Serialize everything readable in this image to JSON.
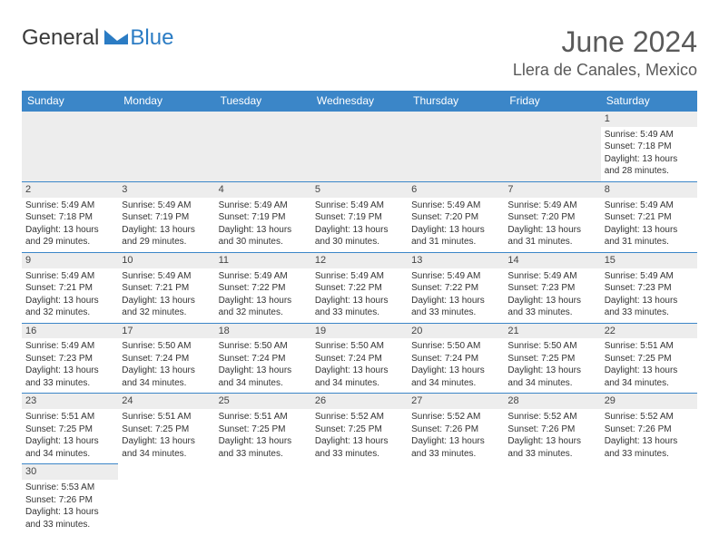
{
  "brand": {
    "part1": "General",
    "part2": "Blue"
  },
  "month_title": "June 2024",
  "location": "Llera de Canales, Mexico",
  "day_headers": [
    "Sunday",
    "Monday",
    "Tuesday",
    "Wednesday",
    "Thursday",
    "Friday",
    "Saturday"
  ],
  "colors": {
    "header_bg": "#3b86c8",
    "header_text": "#ffffff",
    "cell_border": "#3b86c8",
    "daynum_bg": "#ededed",
    "text": "#333333",
    "logo_blue": "#2b7cc4"
  },
  "weeks": [
    [
      null,
      null,
      null,
      null,
      null,
      null,
      {
        "n": "1",
        "sr": "Sunrise: 5:49 AM",
        "ss": "Sunset: 7:18 PM",
        "d1": "Daylight: 13 hours",
        "d2": "and 28 minutes."
      }
    ],
    [
      {
        "n": "2",
        "sr": "Sunrise: 5:49 AM",
        "ss": "Sunset: 7:18 PM",
        "d1": "Daylight: 13 hours",
        "d2": "and 29 minutes."
      },
      {
        "n": "3",
        "sr": "Sunrise: 5:49 AM",
        "ss": "Sunset: 7:19 PM",
        "d1": "Daylight: 13 hours",
        "d2": "and 29 minutes."
      },
      {
        "n": "4",
        "sr": "Sunrise: 5:49 AM",
        "ss": "Sunset: 7:19 PM",
        "d1": "Daylight: 13 hours",
        "d2": "and 30 minutes."
      },
      {
        "n": "5",
        "sr": "Sunrise: 5:49 AM",
        "ss": "Sunset: 7:19 PM",
        "d1": "Daylight: 13 hours",
        "d2": "and 30 minutes."
      },
      {
        "n": "6",
        "sr": "Sunrise: 5:49 AM",
        "ss": "Sunset: 7:20 PM",
        "d1": "Daylight: 13 hours",
        "d2": "and 31 minutes."
      },
      {
        "n": "7",
        "sr": "Sunrise: 5:49 AM",
        "ss": "Sunset: 7:20 PM",
        "d1": "Daylight: 13 hours",
        "d2": "and 31 minutes."
      },
      {
        "n": "8",
        "sr": "Sunrise: 5:49 AM",
        "ss": "Sunset: 7:21 PM",
        "d1": "Daylight: 13 hours",
        "d2": "and 31 minutes."
      }
    ],
    [
      {
        "n": "9",
        "sr": "Sunrise: 5:49 AM",
        "ss": "Sunset: 7:21 PM",
        "d1": "Daylight: 13 hours",
        "d2": "and 32 minutes."
      },
      {
        "n": "10",
        "sr": "Sunrise: 5:49 AM",
        "ss": "Sunset: 7:21 PM",
        "d1": "Daylight: 13 hours",
        "d2": "and 32 minutes."
      },
      {
        "n": "11",
        "sr": "Sunrise: 5:49 AM",
        "ss": "Sunset: 7:22 PM",
        "d1": "Daylight: 13 hours",
        "d2": "and 32 minutes."
      },
      {
        "n": "12",
        "sr": "Sunrise: 5:49 AM",
        "ss": "Sunset: 7:22 PM",
        "d1": "Daylight: 13 hours",
        "d2": "and 33 minutes."
      },
      {
        "n": "13",
        "sr": "Sunrise: 5:49 AM",
        "ss": "Sunset: 7:22 PM",
        "d1": "Daylight: 13 hours",
        "d2": "and 33 minutes."
      },
      {
        "n": "14",
        "sr": "Sunrise: 5:49 AM",
        "ss": "Sunset: 7:23 PM",
        "d1": "Daylight: 13 hours",
        "d2": "and 33 minutes."
      },
      {
        "n": "15",
        "sr": "Sunrise: 5:49 AM",
        "ss": "Sunset: 7:23 PM",
        "d1": "Daylight: 13 hours",
        "d2": "and 33 minutes."
      }
    ],
    [
      {
        "n": "16",
        "sr": "Sunrise: 5:49 AM",
        "ss": "Sunset: 7:23 PM",
        "d1": "Daylight: 13 hours",
        "d2": "and 33 minutes."
      },
      {
        "n": "17",
        "sr": "Sunrise: 5:50 AM",
        "ss": "Sunset: 7:24 PM",
        "d1": "Daylight: 13 hours",
        "d2": "and 34 minutes."
      },
      {
        "n": "18",
        "sr": "Sunrise: 5:50 AM",
        "ss": "Sunset: 7:24 PM",
        "d1": "Daylight: 13 hours",
        "d2": "and 34 minutes."
      },
      {
        "n": "19",
        "sr": "Sunrise: 5:50 AM",
        "ss": "Sunset: 7:24 PM",
        "d1": "Daylight: 13 hours",
        "d2": "and 34 minutes."
      },
      {
        "n": "20",
        "sr": "Sunrise: 5:50 AM",
        "ss": "Sunset: 7:24 PM",
        "d1": "Daylight: 13 hours",
        "d2": "and 34 minutes."
      },
      {
        "n": "21",
        "sr": "Sunrise: 5:50 AM",
        "ss": "Sunset: 7:25 PM",
        "d1": "Daylight: 13 hours",
        "d2": "and 34 minutes."
      },
      {
        "n": "22",
        "sr": "Sunrise: 5:51 AM",
        "ss": "Sunset: 7:25 PM",
        "d1": "Daylight: 13 hours",
        "d2": "and 34 minutes."
      }
    ],
    [
      {
        "n": "23",
        "sr": "Sunrise: 5:51 AM",
        "ss": "Sunset: 7:25 PM",
        "d1": "Daylight: 13 hours",
        "d2": "and 34 minutes."
      },
      {
        "n": "24",
        "sr": "Sunrise: 5:51 AM",
        "ss": "Sunset: 7:25 PM",
        "d1": "Daylight: 13 hours",
        "d2": "and 34 minutes."
      },
      {
        "n": "25",
        "sr": "Sunrise: 5:51 AM",
        "ss": "Sunset: 7:25 PM",
        "d1": "Daylight: 13 hours",
        "d2": "and 33 minutes."
      },
      {
        "n": "26",
        "sr": "Sunrise: 5:52 AM",
        "ss": "Sunset: 7:25 PM",
        "d1": "Daylight: 13 hours",
        "d2": "and 33 minutes."
      },
      {
        "n": "27",
        "sr": "Sunrise: 5:52 AM",
        "ss": "Sunset: 7:26 PM",
        "d1": "Daylight: 13 hours",
        "d2": "and 33 minutes."
      },
      {
        "n": "28",
        "sr": "Sunrise: 5:52 AM",
        "ss": "Sunset: 7:26 PM",
        "d1": "Daylight: 13 hours",
        "d2": "and 33 minutes."
      },
      {
        "n": "29",
        "sr": "Sunrise: 5:52 AM",
        "ss": "Sunset: 7:26 PM",
        "d1": "Daylight: 13 hours",
        "d2": "and 33 minutes."
      }
    ],
    [
      {
        "n": "30",
        "sr": "Sunrise: 5:53 AM",
        "ss": "Sunset: 7:26 PM",
        "d1": "Daylight: 13 hours",
        "d2": "and 33 minutes."
      },
      null,
      null,
      null,
      null,
      null,
      null
    ]
  ]
}
